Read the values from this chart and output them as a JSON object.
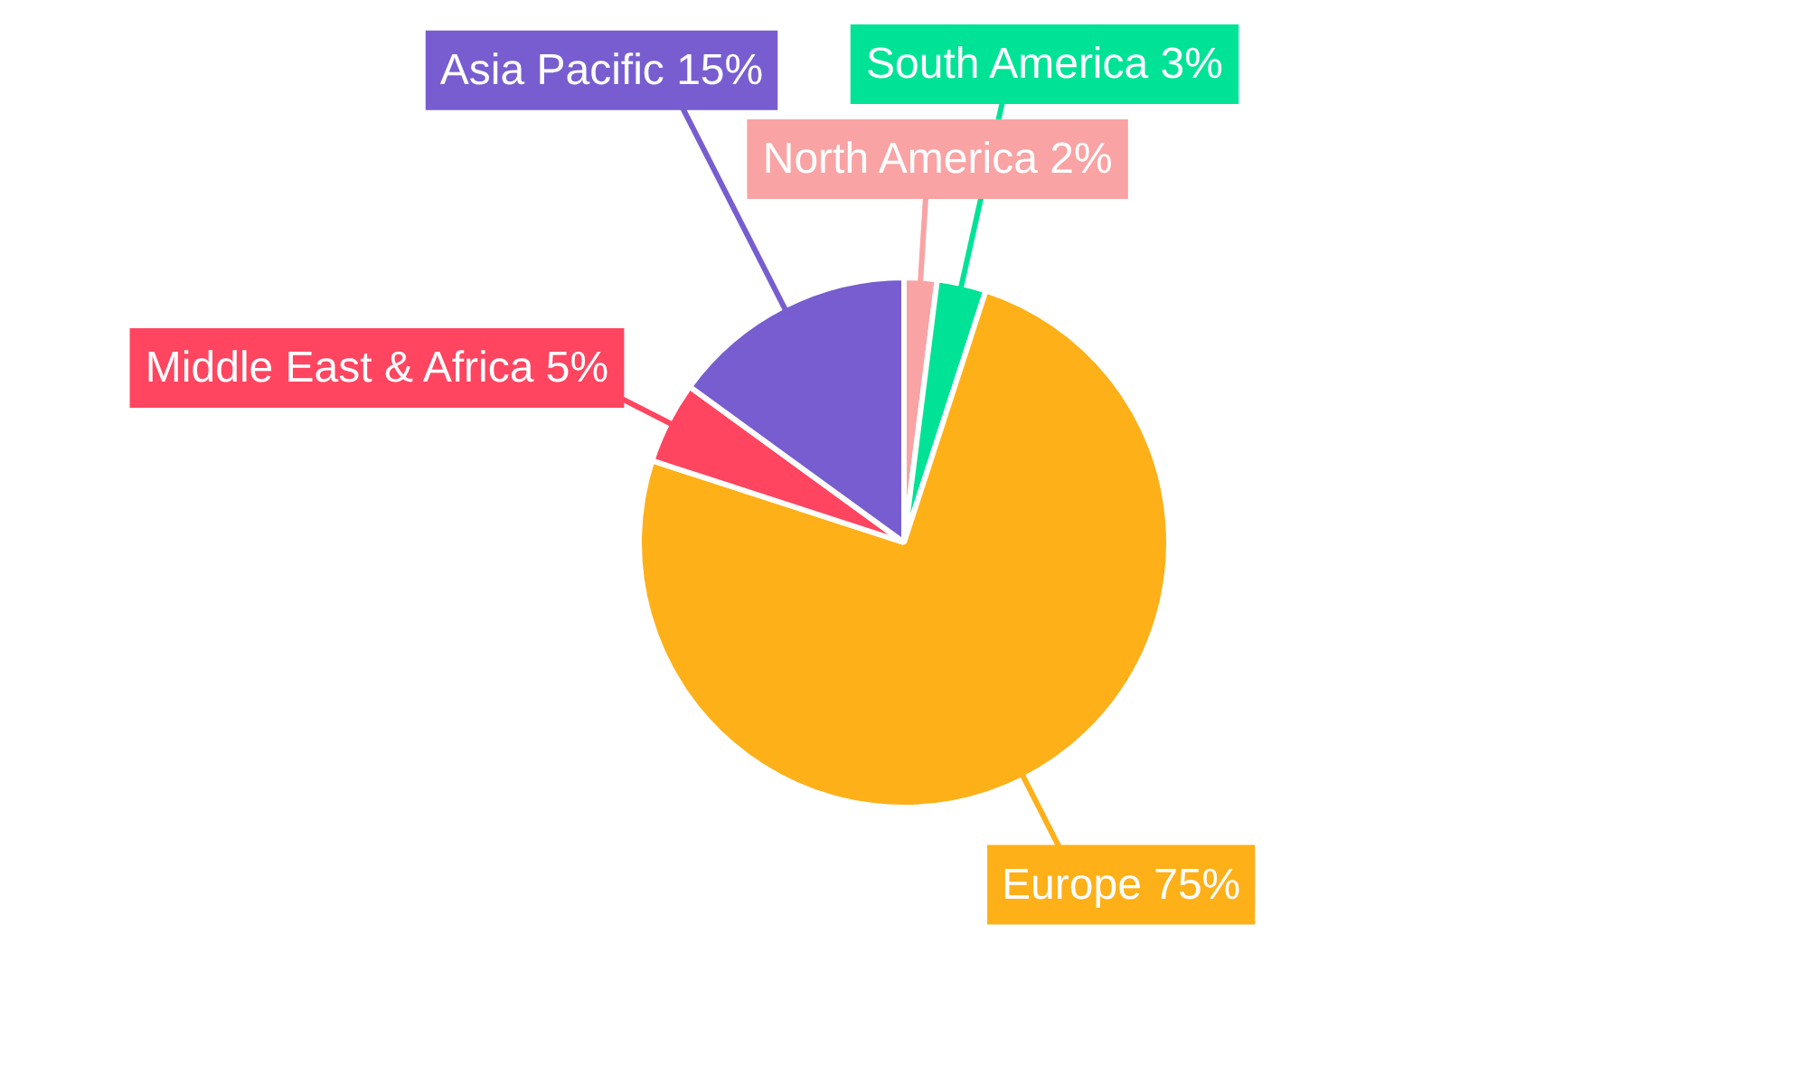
{
  "chart_data": {
    "type": "pie",
    "categories": [
      "North America",
      "South America",
      "Europe",
      "Middle East & Africa",
      "Asia Pacific"
    ],
    "values": [
      2,
      3,
      75,
      5,
      15
    ],
    "value_labels": [
      "2%",
      "3%",
      "75%",
      "5%",
      "15%"
    ],
    "colors": [
      "#f9a3a4",
      "#00e396",
      "#feb019",
      "#ff4560",
      "#775dd0"
    ],
    "legend": false
  }
}
